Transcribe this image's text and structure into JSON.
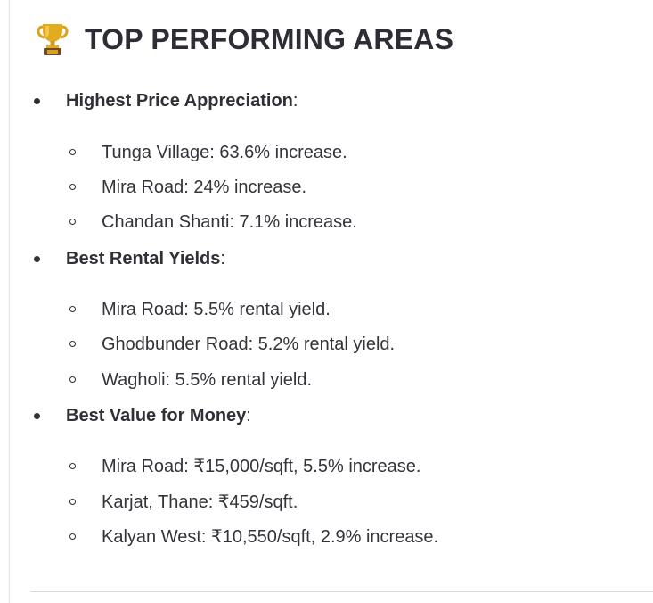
{
  "heading": {
    "icon": "trophy-icon",
    "title": "TOP PERFORMING AREAS"
  },
  "sections": [
    {
      "title": "Highest Price Appreciation",
      "suffix": ":",
      "items": [
        "Tunga Village: 63.6% increase.",
        "Mira Road: 24% increase.",
        "Chandan Shanti: 7.1% increase."
      ]
    },
    {
      "title": "Best Rental Yields",
      "suffix": ":",
      "items": [
        "Mira Road: 5.5% rental yield.",
        "Ghodbunder Road: 5.2% rental yield.",
        "Wagholi: 5.5% rental yield."
      ]
    },
    {
      "title": "Best Value for Money",
      "suffix": ":",
      "items": [
        "Mira Road: ₹15,000/sqft, 5.5% increase.",
        "Karjat, Thane: ₹459/sqft.",
        "Kalyan West: ₹10,550/sqft, 2.9% increase."
      ]
    }
  ],
  "colors": {
    "text": "#2f2f36",
    "trophy_gold": "#d9a21b",
    "trophy_base": "#6b4a2b"
  }
}
